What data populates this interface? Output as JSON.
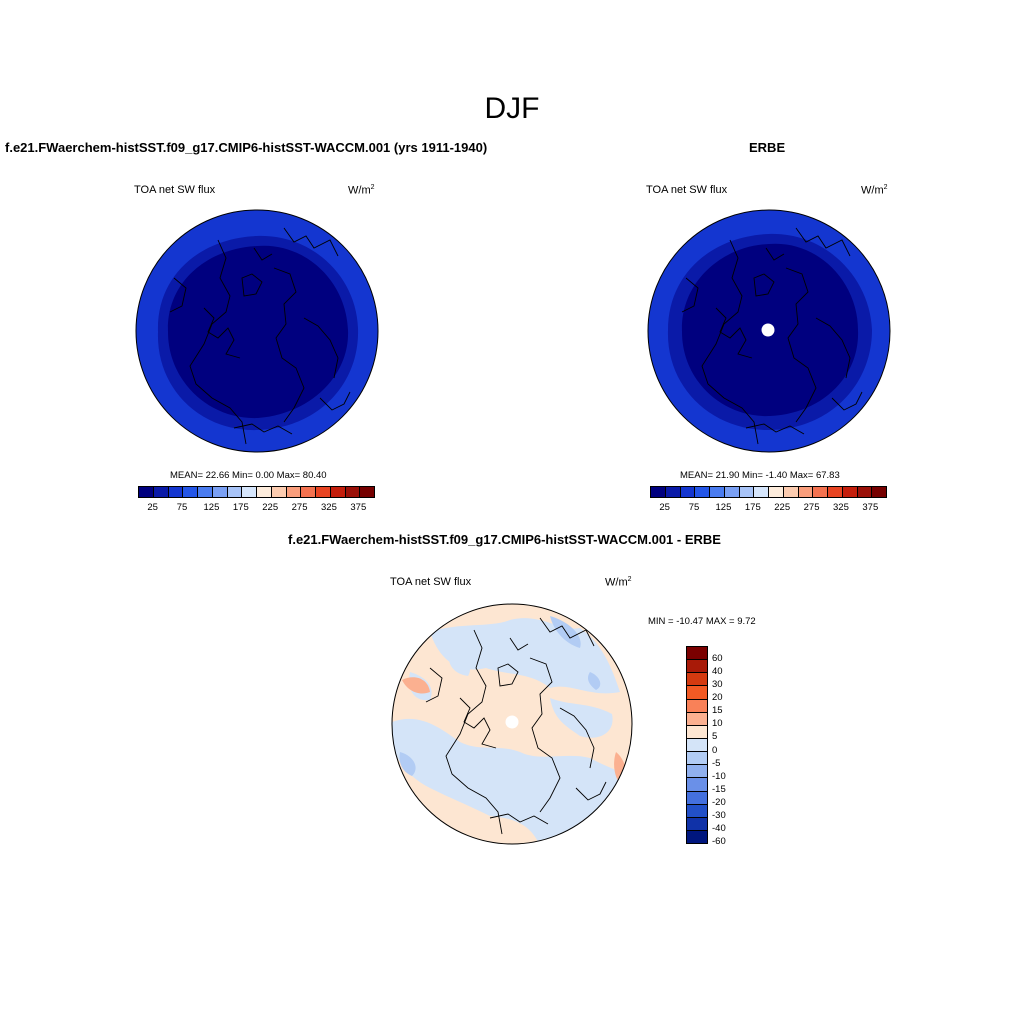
{
  "figure": {
    "title": "DJF"
  },
  "panel_left": {
    "title": "f.e21.FWaerchem-histSST.f09_g17.CMIP6-histSST-WACCM.001 (yrs 1911-1940)",
    "variable": "TOA net SW flux",
    "units_base": "W/m",
    "units_exp": "2",
    "stats": "MEAN=  22.66  Min=   0.00  Max=  80.40"
  },
  "panel_right": {
    "title": "ERBE",
    "variable": "TOA net SW flux",
    "units_base": "W/m",
    "units_exp": "2",
    "stats": "MEAN=  21.90  Min=  -1.40  Max=  67.83"
  },
  "panel_diff": {
    "title": "f.e21.FWaerchem-histSST.f09_g17.CMIP6-histSST-WACCM.001 - ERBE",
    "variable": "TOA net SW flux",
    "units_base": "W/m",
    "units_exp": "2",
    "stats": "MIN = -10.47 MAX =   9.72"
  },
  "colorbar_abs": {
    "colors": [
      "#00007f",
      "#0a1aa8",
      "#1436d0",
      "#2456e8",
      "#4a7cf0",
      "#7aa0f4",
      "#a8c4f8",
      "#d6e6fc",
      "#fdecdc",
      "#fcccb0",
      "#fa9e7c",
      "#f47250",
      "#e84422",
      "#c41e0c",
      "#9a1008",
      "#760000"
    ],
    "tick_labels": [
      "25",
      "75",
      "125",
      "175",
      "225",
      "275",
      "325",
      "375"
    ]
  },
  "colorbar_diff": {
    "colors": [
      "#7a0000",
      "#a81a08",
      "#d43a10",
      "#f25a24",
      "#f98158",
      "#fbb090",
      "#fde6d2",
      "#d4e4f8",
      "#b2ccf4",
      "#90b0ee",
      "#6a90e8",
      "#4470de",
      "#2250c8",
      "#1032a8",
      "#00167e"
    ],
    "tick_labels": [
      "60",
      "40",
      "30",
      "20",
      "15",
      "10",
      "5",
      "0",
      "-5",
      "-10",
      "-15",
      "-20",
      "-30",
      "-40",
      "-60"
    ]
  },
  "chart_data": [
    {
      "type": "heatmap",
      "projection": "north polar stereographic",
      "title": "f.e21.FWaerchem-histSST.f09_g17.CMIP6-histSST-WACCM.001 (yrs 1911-1940)",
      "variable": "TOA net SW flux",
      "units": "W/m2",
      "mean": 22.66,
      "min": 0.0,
      "max": 80.4,
      "colorbar_ticks": [
        25,
        75,
        125,
        175,
        225,
        275,
        325,
        375
      ]
    },
    {
      "type": "heatmap",
      "projection": "north polar stereographic",
      "title": "ERBE",
      "variable": "TOA net SW flux",
      "units": "W/m2",
      "mean": 21.9,
      "min": -1.4,
      "max": 67.83,
      "colorbar_ticks": [
        25,
        75,
        125,
        175,
        225,
        275,
        325,
        375
      ]
    },
    {
      "type": "heatmap",
      "projection": "north polar stereographic",
      "title": "f.e21.FWaerchem-histSST.f09_g17.CMIP6-histSST-WACCM.001 - ERBE",
      "variable": "TOA net SW flux",
      "units": "W/m2",
      "min": -10.47,
      "max": 9.72,
      "colorbar_levels": [
        60,
        40,
        30,
        20,
        15,
        10,
        5,
        0,
        -5,
        -10,
        -15,
        -20,
        -30,
        -40,
        -60
      ]
    }
  ]
}
